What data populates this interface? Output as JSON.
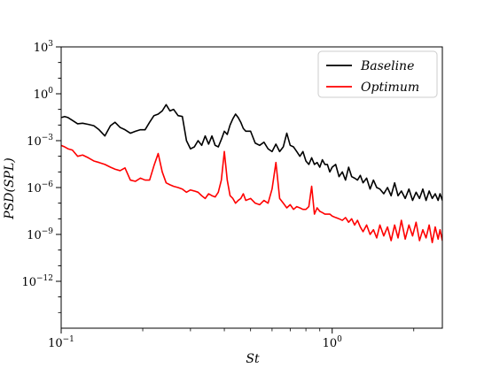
{
  "chart_data": {
    "type": "line",
    "xlabel": "St",
    "ylabel": "PSD(SPL)",
    "xscale": "log",
    "yscale": "log",
    "xlim": [
      0.1,
      2.55
    ],
    "ylim": [
      1e-15,
      1000
    ],
    "x_ticks": [
      {
        "value": 0.1,
        "base": "10",
        "exp": "−1"
      },
      {
        "value": 1,
        "base": "10",
        "exp": "0"
      }
    ],
    "y_ticks": [
      {
        "value": 1e-12,
        "base": "10",
        "exp": "−12"
      },
      {
        "value": 1e-09,
        "base": "10",
        "exp": "−9"
      },
      {
        "value": 1e-06,
        "base": "10",
        "exp": "−6"
      },
      {
        "value": 0.001,
        "base": "10",
        "exp": "−3"
      },
      {
        "value": 1,
        "base": "10",
        "exp": "0"
      },
      {
        "value": 1000,
        "base": "10",
        "exp": "3"
      }
    ],
    "grid": false,
    "legend_position": "top-right",
    "series": [
      {
        "name": "Baseline",
        "color": "#000000",
        "x": [
          0.1,
          0.103,
          0.106,
          0.11,
          0.115,
          0.12,
          0.126,
          0.132,
          0.138,
          0.145,
          0.152,
          0.158,
          0.165,
          0.172,
          0.18,
          0.188,
          0.196,
          0.204,
          0.212,
          0.22,
          0.228,
          0.236,
          0.244,
          0.252,
          0.26,
          0.27,
          0.28,
          0.29,
          0.3,
          0.31,
          0.32,
          0.33,
          0.34,
          0.35,
          0.36,
          0.37,
          0.38,
          0.39,
          0.4,
          0.41,
          0.42,
          0.43,
          0.44,
          0.45,
          0.46,
          0.47,
          0.48,
          0.5,
          0.52,
          0.54,
          0.56,
          0.58,
          0.6,
          0.62,
          0.64,
          0.66,
          0.68,
          0.7,
          0.72,
          0.74,
          0.76,
          0.78,
          0.8,
          0.82,
          0.84,
          0.86,
          0.88,
          0.9,
          0.92,
          0.94,
          0.96,
          0.98,
          1.0,
          1.03,
          1.06,
          1.09,
          1.12,
          1.15,
          1.18,
          1.21,
          1.24,
          1.27,
          1.3,
          1.34,
          1.38,
          1.42,
          1.46,
          1.5,
          1.55,
          1.6,
          1.65,
          1.7,
          1.75,
          1.8,
          1.86,
          1.92,
          1.98,
          2.04,
          2.1,
          2.16,
          2.22,
          2.28,
          2.34,
          2.4,
          2.46,
          2.5,
          2.55
        ],
        "y": [
          0.03,
          0.035,
          0.03,
          0.02,
          0.012,
          0.013,
          0.011,
          0.009,
          0.005,
          0.002,
          0.009,
          0.015,
          0.007,
          0.005,
          0.003,
          0.004,
          0.005,
          0.005,
          0.015,
          0.04,
          0.05,
          0.08,
          0.2,
          0.08,
          0.1,
          0.04,
          0.035,
          0.001,
          0.0003,
          0.0004,
          0.001,
          0.0005,
          0.002,
          0.0006,
          0.002,
          0.0005,
          0.0004,
          0.0012,
          0.004,
          0.0025,
          0.01,
          0.025,
          0.05,
          0.03,
          0.015,
          0.006,
          0.004,
          0.004,
          0.0007,
          0.0005,
          0.0008,
          0.0003,
          0.0002,
          0.0006,
          0.0002,
          0.0004,
          0.003,
          0.0005,
          0.0004,
          0.0002,
          0.0001,
          0.0002,
          5e-05,
          3e-05,
          8e-05,
          3e-05,
          4e-05,
          2e-05,
          6e-05,
          3e-05,
          3e-05,
          1e-05,
          2e-05,
          3e-05,
          5e-06,
          1e-05,
          3e-06,
          2e-05,
          5e-06,
          4e-06,
          3e-06,
          6e-06,
          2e-06,
          4e-06,
          8e-07,
          3e-06,
          1e-06,
          8e-07,
          4e-07,
          1e-06,
          3e-07,
          2e-06,
          3e-07,
          6e-07,
          2e-07,
          8e-07,
          1.5e-07,
          5e-07,
          2e-07,
          8e-07,
          1.5e-07,
          6e-07,
          2e-07,
          4e-07,
          1.5e-07,
          4e-07,
          1.5e-07
        ]
      },
      {
        "name": "Optimum",
        "color": "#ff0000",
        "x": [
          0.1,
          0.103,
          0.106,
          0.11,
          0.115,
          0.12,
          0.126,
          0.132,
          0.138,
          0.145,
          0.152,
          0.158,
          0.165,
          0.172,
          0.18,
          0.188,
          0.196,
          0.204,
          0.212,
          0.22,
          0.228,
          0.236,
          0.244,
          0.252,
          0.26,
          0.27,
          0.28,
          0.29,
          0.3,
          0.31,
          0.32,
          0.33,
          0.34,
          0.35,
          0.36,
          0.37,
          0.38,
          0.39,
          0.4,
          0.41,
          0.42,
          0.43,
          0.44,
          0.45,
          0.46,
          0.47,
          0.48,
          0.5,
          0.52,
          0.54,
          0.56,
          0.58,
          0.6,
          0.62,
          0.64,
          0.66,
          0.68,
          0.7,
          0.72,
          0.74,
          0.76,
          0.78,
          0.8,
          0.82,
          0.84,
          0.86,
          0.88,
          0.9,
          0.92,
          0.94,
          0.96,
          0.98,
          1.0,
          1.03,
          1.06,
          1.09,
          1.12,
          1.15,
          1.18,
          1.21,
          1.24,
          1.27,
          1.3,
          1.34,
          1.38,
          1.42,
          1.46,
          1.5,
          1.55,
          1.6,
          1.65,
          1.7,
          1.75,
          1.8,
          1.86,
          1.92,
          1.98,
          2.04,
          2.1,
          2.16,
          2.22,
          2.28,
          2.34,
          2.4,
          2.46,
          2.5,
          2.55
        ],
        "y": [
          0.0005,
          0.0004,
          0.0003,
          0.00025,
          0.0001,
          0.00012,
          8e-05,
          5e-05,
          4e-05,
          3e-05,
          2e-05,
          1.5e-05,
          1.2e-05,
          1.8e-05,
          3e-06,
          2.5e-06,
          4e-06,
          3e-06,
          3e-06,
          2.5e-05,
          0.00015,
          1e-05,
          2e-06,
          1.5e-06,
          1.2e-06,
          1e-06,
          8e-07,
          5e-07,
          7e-07,
          6e-07,
          5e-07,
          3e-07,
          2e-07,
          4e-07,
          3e-07,
          2.5e-07,
          5e-07,
          3e-06,
          0.0002,
          3e-06,
          3e-07,
          2e-07,
          1e-07,
          1.5e-07,
          2e-07,
          4e-07,
          1.5e-07,
          2e-07,
          1e-07,
          8e-08,
          1.5e-07,
          1e-07,
          8e-07,
          4e-05,
          2e-07,
          1e-07,
          5e-08,
          8e-08,
          4e-08,
          6e-08,
          5e-08,
          4e-08,
          4e-08,
          6e-08,
          1.2e-06,
          2e-08,
          5e-08,
          3e-08,
          2.5e-08,
          2e-08,
          2e-08,
          2e-08,
          1.5e-08,
          1.2e-08,
          1e-08,
          8e-09,
          1.2e-08,
          6e-09,
          1e-08,
          4e-09,
          8e-09,
          3e-09,
          1.5e-09,
          4e-09,
          1e-09,
          2e-09,
          6e-10,
          4e-09,
          8e-10,
          3e-09,
          4e-10,
          4e-09,
          6e-10,
          8e-09,
          5e-10,
          4e-09,
          8e-10,
          6e-09,
          4e-10,
          2e-09,
          6e-10,
          4e-09,
          3e-10,
          3e-09,
          5e-10,
          2e-09,
          4e-10
        ]
      }
    ]
  }
}
